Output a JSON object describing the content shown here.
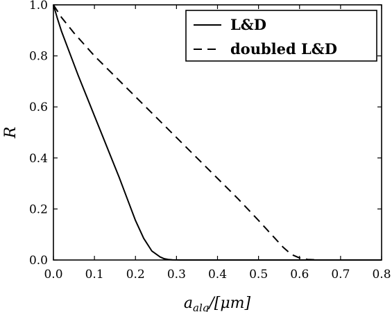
{
  "chart_data": {
    "type": "line",
    "xlabel": {
      "base": "a",
      "sub": "alg",
      "suffix": "/[μm]"
    },
    "ylabel": "R",
    "xlim": [
      0.0,
      0.8
    ],
    "ylim": [
      0.0,
      1.0
    ],
    "xticks": [
      "0.0",
      "0.1",
      "0.2",
      "0.3",
      "0.4",
      "0.5",
      "0.6",
      "0.7",
      "0.8"
    ],
    "yticks": [
      "0.0",
      "0.2",
      "0.4",
      "0.6",
      "0.8",
      "1.0"
    ],
    "grid": false,
    "legend_position": "top-right",
    "series": [
      {
        "name": "L&D",
        "style": "solid",
        "color": "#000000",
        "x": [
          0.0,
          0.01,
          0.02,
          0.04,
          0.06,
          0.08,
          0.1,
          0.12,
          0.14,
          0.16,
          0.18,
          0.2,
          0.22,
          0.24,
          0.26,
          0.27,
          0.28,
          0.29,
          0.3,
          0.31,
          0.32,
          0.35,
          0.4,
          0.5,
          0.6,
          0.7,
          0.8
        ],
        "y": [
          1.0,
          0.945,
          0.895,
          0.81,
          0.725,
          0.645,
          0.565,
          0.485,
          0.405,
          0.325,
          0.24,
          0.155,
          0.085,
          0.035,
          0.012,
          0.005,
          0.002,
          0.0008,
          0.0003,
          0.0001,
          0.0,
          0.0,
          0.0,
          0.0,
          0.0,
          0.0,
          0.0
        ]
      },
      {
        "name": "doubled L&D",
        "style": "dashed",
        "color": "#000000",
        "x": [
          0.0,
          0.02,
          0.05,
          0.1,
          0.15,
          0.2,
          0.25,
          0.3,
          0.35,
          0.4,
          0.45,
          0.5,
          0.52,
          0.54,
          0.56,
          0.58,
          0.6,
          0.62,
          0.65,
          0.7,
          0.8
        ],
        "y": [
          1.0,
          0.95,
          0.89,
          0.8,
          0.72,
          0.64,
          0.56,
          0.48,
          0.4,
          0.32,
          0.24,
          0.155,
          0.12,
          0.085,
          0.05,
          0.022,
          0.008,
          0.002,
          0.0,
          0.0,
          0.0
        ]
      }
    ]
  }
}
